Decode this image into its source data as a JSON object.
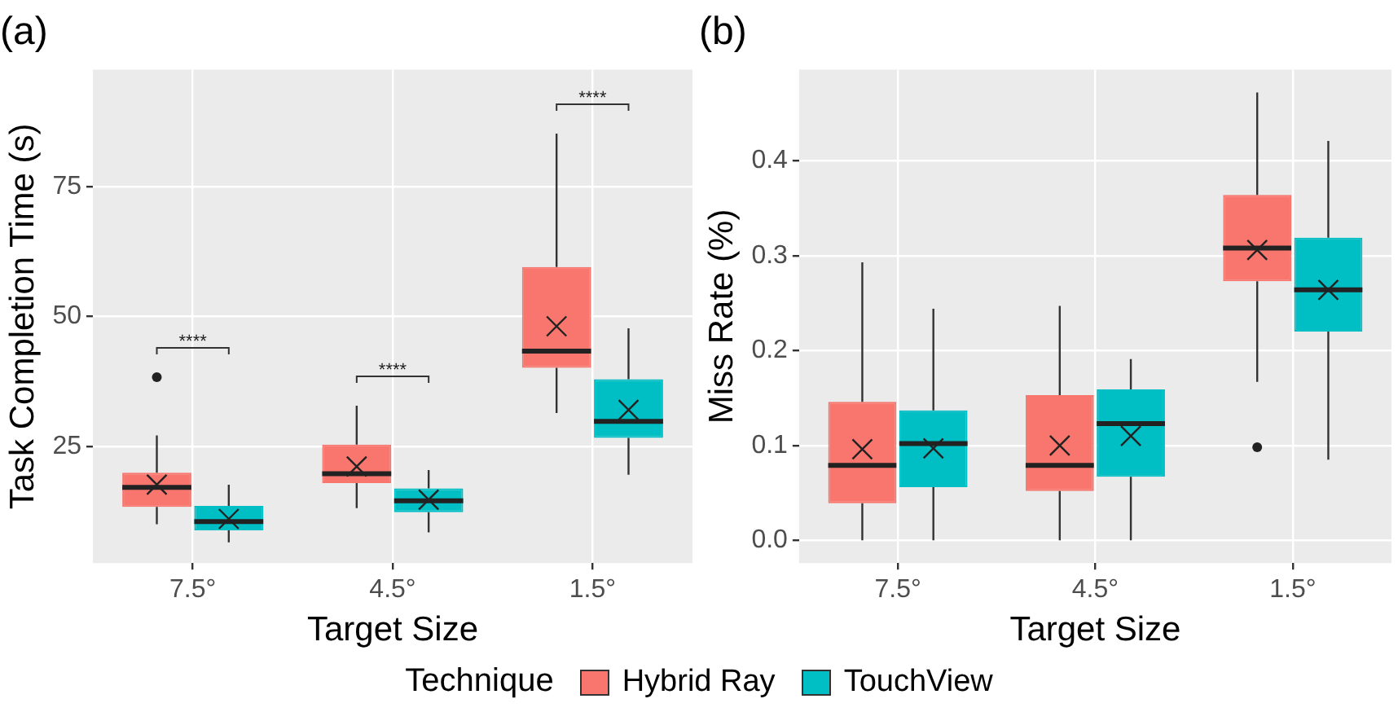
{
  "chart_data": [
    {
      "type": "box",
      "title": "(a)",
      "xlabel": "Target Size",
      "ylabel": "Task Completion Time (s)",
      "categories": [
        "7.5°",
        "4.5°",
        "1.5°"
      ],
      "ylim": [
        2.5,
        97.5
      ],
      "yticks": [
        25,
        50,
        75
      ],
      "grid": true,
      "legend": "bottom",
      "legend_title": "Technique",
      "series": [
        {
          "name": "Hybrid Ray",
          "color": "#f8766d",
          "boxes": [
            {
              "low": 10.0,
              "q1": 13.3,
              "median": 17.1,
              "q3": 19.9,
              "high": 27.1,
              "mean": 17.6,
              "outliers": [
                38.3
              ]
            },
            {
              "low": 13.1,
              "q1": 17.9,
              "median": 19.7,
              "q3": 25.3,
              "high": 32.8,
              "mean": 21.1
            },
            {
              "low": 31.4,
              "q1": 40.1,
              "median": 43.3,
              "q3": 59.5,
              "high": 85.2,
              "mean": 48.1
            }
          ]
        },
        {
          "name": "TouchView",
          "color": "#00bfc4",
          "boxes": [
            {
              "low": 6.5,
              "q1": 8.8,
              "median": 10.5,
              "q3": 13.5,
              "high": 17.6,
              "mean": 11.0
            },
            {
              "low": 8.4,
              "q1": 12.3,
              "median": 14.5,
              "q3": 16.9,
              "high": 20.4,
              "mean": 14.7
            },
            {
              "low": 19.5,
              "q1": 26.6,
              "median": 29.8,
              "q3": 37.9,
              "high": 47.7,
              "mean": 32.0
            }
          ]
        }
      ],
      "annotations": [
        "****",
        "****",
        "****"
      ]
    },
    {
      "type": "box",
      "title": "(b)",
      "xlabel": "Target Size",
      "ylabel": "Miss Rate (%)",
      "categories": [
        "7.5°",
        "4.5°",
        "1.5°"
      ],
      "ylim": [
        -0.024,
        0.496
      ],
      "yticks": [
        {
          "value": 0,
          "label": "0.0"
        },
        0.1,
        0.2,
        0.3,
        0.4
      ],
      "grid": true,
      "series": [
        {
          "color": "#f8766d",
          "boxes": [
            {
              "low": 0,
              "q1": 0.039,
              "median": 0.079,
              "q3": 0.146,
              "high": 0.293,
              "mean": 0.096
            },
            {
              "low": 0,
              "q1": 0.052,
              "median": 0.079,
              "q3": 0.153,
              "high": 0.247,
              "mean": 0.1
            },
            {
              "low": 0.167,
              "q1": 0.273,
              "median": 0.308,
              "q3": 0.364,
              "high": 0.472,
              "mean": 0.306,
              "outliers": [
                0.098
              ]
            }
          ]
        },
        {
          "color": "#00bfc4",
          "boxes": [
            {
              "low": 0,
              "q1": 0.056,
              "median": 0.102,
              "q3": 0.137,
              "high": 0.244,
              "mean": 0.097
            },
            {
              "low": 0,
              "q1": 0.067,
              "median": 0.123,
              "q3": 0.159,
              "high": 0.191,
              "mean": 0.11
            },
            {
              "low": 0.085,
              "q1": 0.22,
              "median": 0.264,
              "q3": 0.319,
              "high": 0.421,
              "mean": 0.264
            }
          ]
        }
      ]
    }
  ]
}
